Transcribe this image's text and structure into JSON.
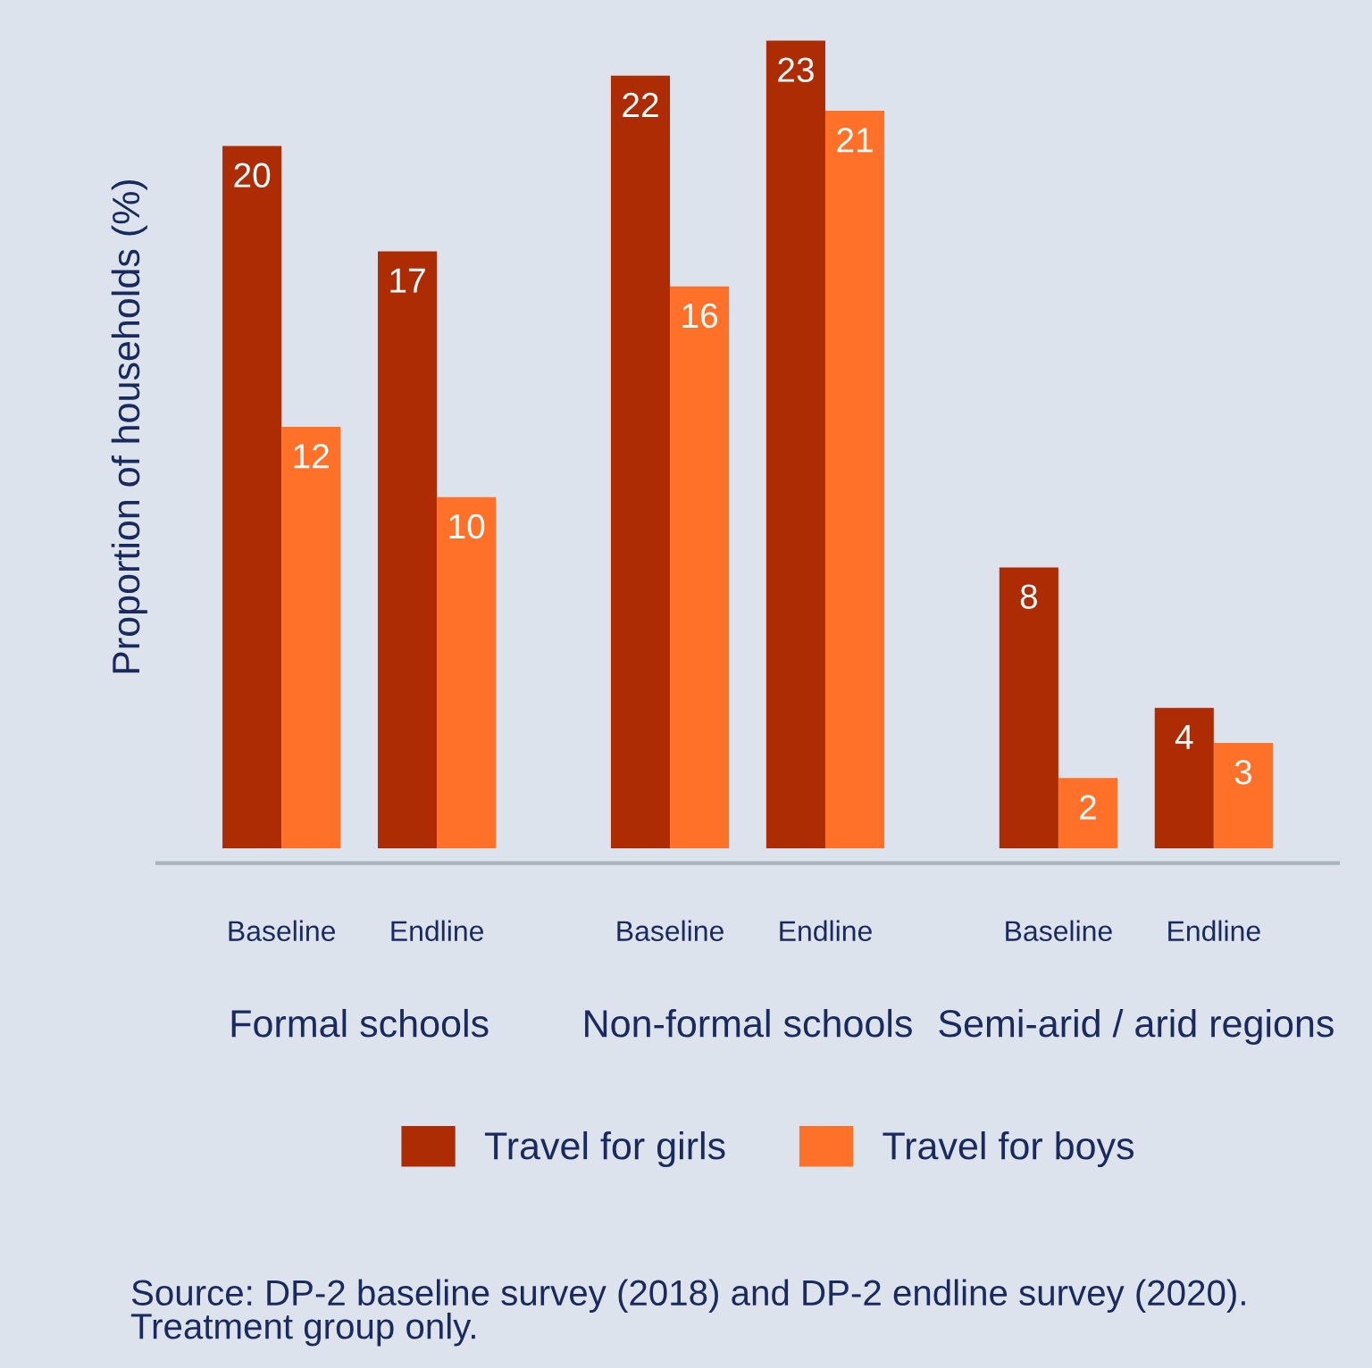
{
  "chart_data": {
    "type": "bar",
    "ylabel": "Proportion of households (%)",
    "categories": [
      "Baseline",
      "Endline",
      "Baseline",
      "Endline",
      "Baseline",
      "Endline"
    ],
    "series": [
      {
        "name": "Travel for girls",
        "color": "#ae2c03",
        "values": [
          20,
          17,
          22,
          23,
          8,
          4
        ]
      },
      {
        "name": "Travel for boys",
        "color": "#ff7029",
        "values": [
          12,
          10,
          16,
          21,
          2,
          3
        ]
      }
    ],
    "ylim": [
      0,
      24
    ],
    "tick_labels": "x",
    "data_labels": true,
    "legend": "bottom",
    "annotations": [
      "Formal schools",
      "Non-formal schools",
      "Semi-arid / arid regions",
      "Source: DP-2 baseline survey (2018) and DP-2 endline survey (2020). Treatment group only."
    ]
  }
}
